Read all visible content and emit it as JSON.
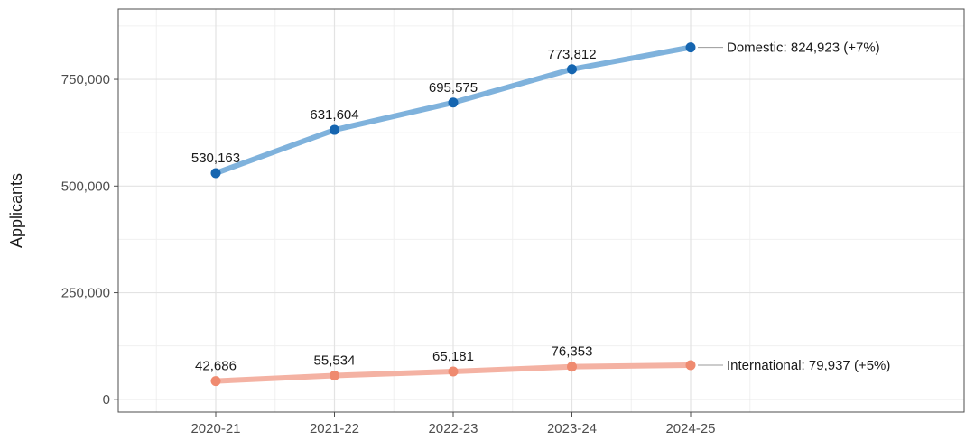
{
  "chart_data": {
    "type": "line",
    "title": "",
    "xlabel": "",
    "ylabel": "Applicants",
    "categories": [
      "2020-21",
      "2021-22",
      "2022-23",
      "2023-24",
      "2024-25"
    ],
    "ylim": [
      -30000,
      915000
    ],
    "yticks": [
      0,
      250000,
      500000,
      750000
    ],
    "ytick_labels": [
      "0",
      "250,000",
      "500,000",
      "750,000"
    ],
    "grid": true,
    "legend": "none (direct end labels)",
    "series": [
      {
        "name": "Domestic",
        "values": [
          530163,
          631604,
          695575,
          773812,
          824923
        ],
        "point_labels": [
          "530,163",
          "631,604",
          "695,575",
          "773,812"
        ],
        "end_label": "Domestic: 824,923 (+7%)",
        "line_color": "#7fb2dc",
        "point_color": "#1565b0"
      },
      {
        "name": "International",
        "values": [
          42686,
          55534,
          65181,
          76353,
          79937
        ],
        "point_labels": [
          "42,686",
          "55,534",
          "65,181",
          "76,353"
        ],
        "end_label": "International: 79,937 (+5%)",
        "line_color": "#f4b2a3",
        "point_color": "#ef8a6f"
      }
    ]
  }
}
